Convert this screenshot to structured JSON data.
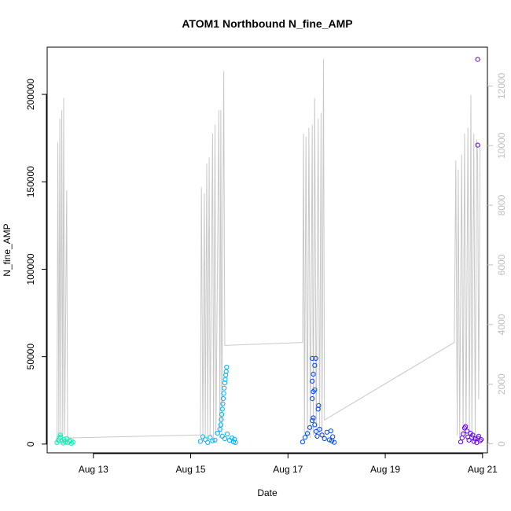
{
  "chart_data": {
    "type": "scatter",
    "title": "ATOM1 Northbound N_fine_AMP",
    "xlabel": "Date",
    "ylabel": "N_fine_AMP",
    "x_ticks": [
      "Aug 13",
      "Aug 15",
      "Aug 17",
      "Aug 19",
      "Aug 21"
    ],
    "x_tick_days": [
      13,
      15,
      17,
      19,
      21
    ],
    "xlim_days": [
      12.05,
      21.1
    ],
    "y_ticks": [
      0,
      50000,
      100000,
      150000,
      200000
    ],
    "ylim": [
      -5000,
      227000
    ],
    "y2_ticks": [
      0,
      2000,
      4000,
      6000,
      8000,
      10000,
      12000
    ],
    "y2lim": [
      -300,
      13300
    ],
    "grid": false,
    "colors": {
      "axis": "#000000",
      "secondary_axis": "#bebebe",
      "secondary_line": "#c8c8c8"
    },
    "series": [
      {
        "color": "#00f5b0",
        "points": [
          [
            12.25,
            900
          ],
          [
            12.28,
            2300
          ],
          [
            12.3,
            3500
          ],
          [
            12.32,
            5200
          ],
          [
            12.33,
            4100
          ],
          [
            12.35,
            1800
          ],
          [
            12.38,
            600
          ],
          [
            12.4,
            2700
          ],
          [
            12.42,
            1300
          ],
          [
            12.45,
            3200
          ],
          [
            12.47,
            800
          ],
          [
            12.5,
            1500
          ],
          [
            12.53,
            2000
          ],
          [
            12.55,
            400
          ],
          [
            12.58,
            1100
          ]
        ]
      },
      {
        "color": "#00b3f5",
        "points": [
          [
            15.2,
            1500
          ],
          [
            15.25,
            4200
          ],
          [
            15.3,
            2600
          ],
          [
            15.35,
            900
          ],
          [
            15.4,
            3800
          ],
          [
            15.45,
            1900
          ],
          [
            15.5,
            2300
          ],
          [
            15.55,
            6200
          ],
          [
            15.6,
            8500
          ],
          [
            15.62,
            11000
          ],
          [
            15.63,
            14000
          ],
          [
            15.64,
            17000
          ],
          [
            15.65,
            20000
          ],
          [
            15.66,
            23000
          ],
          [
            15.67,
            26000
          ],
          [
            15.68,
            29000
          ],
          [
            15.69,
            32000
          ],
          [
            15.7,
            35000
          ],
          [
            15.71,
            37000
          ],
          [
            15.72,
            39500
          ],
          [
            15.73,
            41500
          ],
          [
            15.74,
            44000
          ],
          [
            15.65,
            4500
          ],
          [
            15.7,
            3100
          ],
          [
            15.75,
            5800
          ],
          [
            15.8,
            2200
          ],
          [
            15.85,
            3500
          ],
          [
            15.88,
            1200
          ],
          [
            15.9,
            2800
          ],
          [
            15.92,
            900
          ]
        ]
      },
      {
        "color": "#0046f5",
        "points": [
          [
            17.3,
            1200
          ],
          [
            17.35,
            3800
          ],
          [
            17.4,
            6100
          ],
          [
            17.45,
            9500
          ],
          [
            17.5,
            13500
          ],
          [
            17.52,
            15000
          ],
          [
            17.55,
            11000
          ],
          [
            17.58,
            7200
          ],
          [
            17.6,
            4500
          ],
          [
            17.62,
            20000
          ],
          [
            17.63,
            22000
          ],
          [
            17.5,
            26000
          ],
          [
            17.52,
            30000
          ],
          [
            17.55,
            31000
          ],
          [
            17.5,
            36000
          ],
          [
            17.52,
            40000
          ],
          [
            17.55,
            45000
          ],
          [
            17.5,
            49000
          ],
          [
            17.57,
            49000
          ],
          [
            17.65,
            8500
          ],
          [
            17.7,
            5200
          ],
          [
            17.75,
            3100
          ],
          [
            17.8,
            6800
          ],
          [
            17.85,
            2400
          ],
          [
            17.88,
            7500
          ],
          [
            17.9,
            1800
          ],
          [
            17.92,
            4200
          ],
          [
            17.95,
            1000
          ]
        ]
      },
      {
        "color": "#6400f5",
        "points": [
          [
            20.55,
            1200
          ],
          [
            20.58,
            3500
          ],
          [
            20.6,
            5800
          ],
          [
            20.63,
            9200
          ],
          [
            20.65,
            10000
          ],
          [
            20.68,
            7400
          ],
          [
            20.7,
            4100
          ],
          [
            20.72,
            2300
          ],
          [
            20.75,
            6200
          ],
          [
            20.78,
            3800
          ],
          [
            20.8,
            5100
          ],
          [
            20.82,
            1500
          ],
          [
            20.85,
            2900
          ],
          [
            20.88,
            800
          ],
          [
            20.9,
            3400
          ],
          [
            20.92,
            4500
          ],
          [
            20.95,
            1900
          ],
          [
            20.97,
            2600
          ],
          [
            20.9,
            171000
          ],
          [
            20.9,
            220000
          ]
        ]
      }
    ],
    "secondary_line": {
      "axis": "y2",
      "points": [
        [
          12.25,
          0
        ],
        [
          12.27,
          10100
        ],
        [
          12.29,
          200
        ],
        [
          12.31,
          10900
        ],
        [
          12.33,
          300
        ],
        [
          12.35,
          11200
        ],
        [
          12.37,
          100
        ],
        [
          12.39,
          11600
        ],
        [
          12.41,
          300
        ],
        [
          12.45,
          8500
        ],
        [
          12.47,
          200
        ],
        [
          12.52,
          200
        ],
        [
          15.2,
          300
        ],
        [
          15.22,
          8600
        ],
        [
          15.25,
          200
        ],
        [
          15.28,
          8400
        ],
        [
          15.3,
          300
        ],
        [
          15.33,
          9400
        ],
        [
          15.35,
          200
        ],
        [
          15.38,
          9600
        ],
        [
          15.4,
          300
        ],
        [
          15.45,
          10400
        ],
        [
          15.47,
          200
        ],
        [
          15.5,
          10700
        ],
        [
          15.52,
          300
        ],
        [
          15.58,
          11200
        ],
        [
          15.6,
          200
        ],
        [
          15.62,
          11200
        ],
        [
          15.64,
          300
        ],
        [
          15.68,
          12500
        ],
        [
          15.7,
          3300
        ],
        [
          17.3,
          3400
        ],
        [
          17.32,
          10400
        ],
        [
          17.34,
          300
        ],
        [
          17.37,
          10300
        ],
        [
          17.4,
          200
        ],
        [
          17.43,
          10600
        ],
        [
          17.46,
          200
        ],
        [
          17.5,
          10700
        ],
        [
          17.52,
          300
        ],
        [
          17.55,
          11600
        ],
        [
          17.58,
          200
        ],
        [
          17.62,
          10900
        ],
        [
          17.65,
          300
        ],
        [
          17.68,
          11100
        ],
        [
          17.7,
          200
        ],
        [
          17.73,
          12900
        ],
        [
          17.75,
          800
        ],
        [
          20.42,
          3400
        ],
        [
          20.45,
          9500
        ],
        [
          20.48,
          300
        ],
        [
          20.5,
          9200
        ],
        [
          20.53,
          200
        ],
        [
          20.57,
          9700
        ],
        [
          20.6,
          300
        ],
        [
          20.63,
          10400
        ],
        [
          20.66,
          200
        ],
        [
          20.7,
          10600
        ],
        [
          20.73,
          300
        ],
        [
          20.76,
          11700
        ],
        [
          20.78,
          300
        ],
        [
          20.82,
          10400
        ],
        [
          20.85,
          300
        ],
        [
          20.88,
          10200
        ],
        [
          20.9,
          9600
        ],
        [
          20.92,
          1500
        ],
        [
          20.95,
          10000
        ]
      ]
    }
  }
}
